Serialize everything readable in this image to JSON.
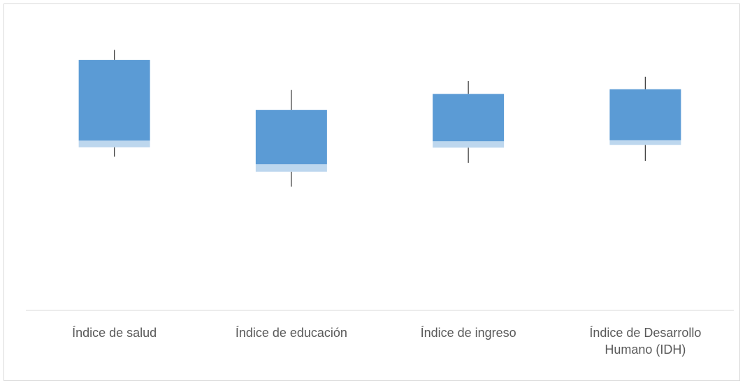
{
  "chart_data": {
    "type": "box",
    "title": "",
    "xlabel": "",
    "ylabel": "",
    "ylim": [
      0,
      1
    ],
    "grid": false,
    "legend": "none",
    "categories": [
      "Índice de salud",
      "Índice de educación",
      "Índice de ingreso",
      "Índice de Desarrollo Humano (IDH)"
    ],
    "boxes": [
      {
        "min": 0.395,
        "q1": 0.419,
        "median": 0.436,
        "q3": 0.643,
        "max": 0.669
      },
      {
        "min": 0.318,
        "q1": 0.356,
        "median": 0.375,
        "q3": 0.515,
        "max": 0.566
      },
      {
        "min": 0.379,
        "q1": 0.418,
        "median": 0.434,
        "q3": 0.556,
        "max": 0.589
      },
      {
        "min": 0.384,
        "q1": 0.425,
        "median": 0.437,
        "q3": 0.568,
        "max": 0.6
      }
    ],
    "colors": {
      "upper_box": "#5b9bd5",
      "lower_box": "#bdd7ee",
      "whisker": "#404040",
      "axis": "#d9d9d9"
    }
  }
}
